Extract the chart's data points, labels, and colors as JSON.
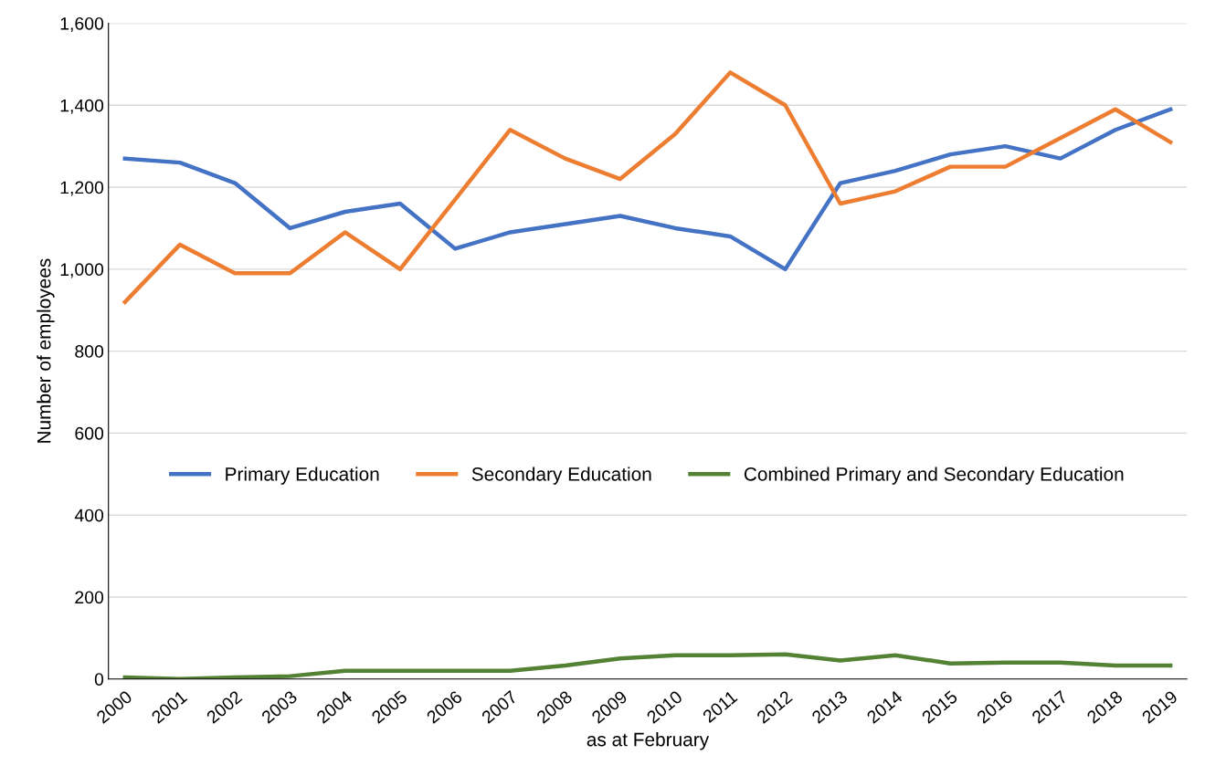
{
  "chart_data": {
    "type": "line",
    "xlabel": "as at February",
    "ylabel": "Number of employees",
    "categories": [
      "2000",
      "2001",
      "2002",
      "2003",
      "2004",
      "2005",
      "2006",
      "2007",
      "2008",
      "2009",
      "2010",
      "2011",
      "2012",
      "2013",
      "2014",
      "2015",
      "2016",
      "2017",
      "2018",
      "2019"
    ],
    "series": [
      {
        "name": "Primary Education",
        "color": "#4472c4",
        "values": [
          1270,
          1260,
          1210,
          1100,
          1140,
          1160,
          1050,
          1090,
          1110,
          1130,
          1100,
          1080,
          1000,
          1210,
          1240,
          1280,
          1300,
          1270,
          1340,
          1390
        ]
      },
      {
        "name": "Secondary Education",
        "color": "#ed7d31",
        "values": [
          920,
          1060,
          990,
          990,
          1090,
          1000,
          1170,
          1340,
          1270,
          1220,
          1330,
          1480,
          1400,
          1160,
          1190,
          1250,
          1250,
          1320,
          1390,
          1310
        ]
      },
      {
        "name": "Combined Primary and Secondary Education",
        "color": "#548235",
        "values": [
          4,
          0,
          4,
          7,
          20,
          20,
          20,
          20,
          33,
          50,
          58,
          58,
          60,
          45,
          58,
          38,
          40,
          40,
          33,
          33
        ]
      }
    ],
    "ylim": [
      0,
      1600
    ],
    "yticks": [
      0,
      200,
      400,
      600,
      800,
      {
        "value": 1000,
        "label": "1,000"
      },
      {
        "value": 1200,
        "label": "1,200"
      },
      {
        "value": 1400,
        "label": "1,400"
      },
      {
        "value": 1600,
        "label": "1,600"
      }
    ],
    "grid": "y",
    "legend": "center",
    "marker": "none",
    "line_style": "solid"
  }
}
